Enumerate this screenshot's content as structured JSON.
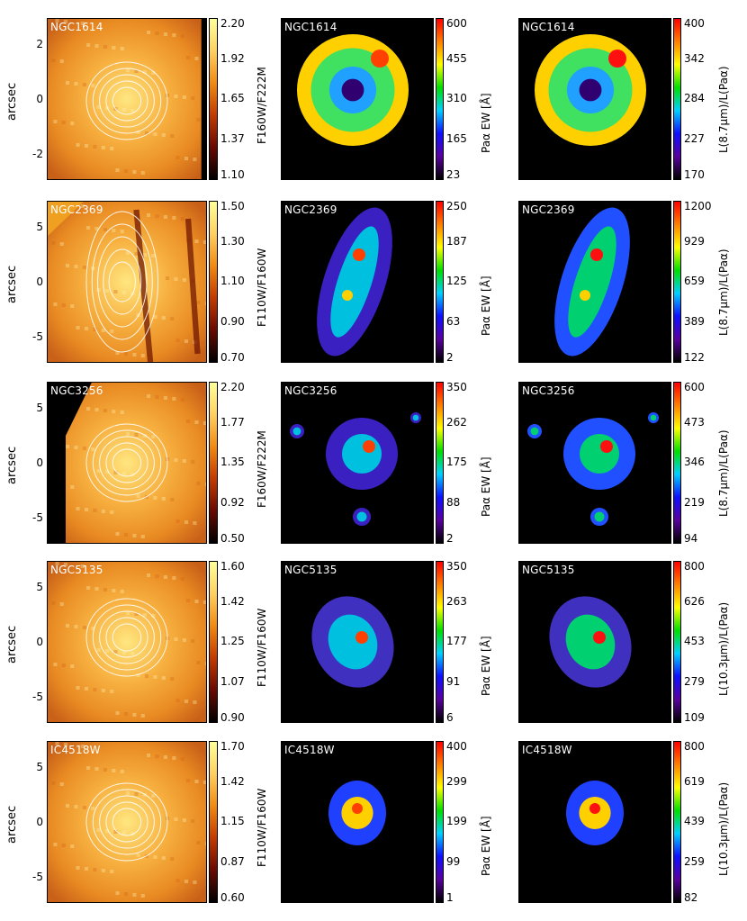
{
  "rows": [
    {
      "galaxy": "NGC1614",
      "y_label": "arcsec",
      "y_ticks": [
        "2",
        "0",
        "-2"
      ],
      "color_panel": {
        "label": "F160W/F222M",
        "ticks": [
          "2.20",
          "1.92",
          "1.65",
          "1.37",
          "1.10"
        ]
      },
      "ew_panel": {
        "label": "Paα EW [Å]",
        "ticks": [
          "600",
          "455",
          "310",
          "165",
          "23"
        ]
      },
      "ratio_panel": {
        "label": "L(8.7μm)/L(Paα)",
        "ticks": [
          "400",
          "342",
          "284",
          "227",
          "170"
        ]
      }
    },
    {
      "galaxy": "NGC2369",
      "y_label": "arcsec",
      "y_ticks": [
        "5",
        "0",
        "-5"
      ],
      "color_panel": {
        "label": "F110W/F160W",
        "ticks": [
          "1.50",
          "1.30",
          "1.10",
          "0.90",
          "0.70"
        ]
      },
      "ew_panel": {
        "label": "Paα EW [Å]",
        "ticks": [
          "250",
          "187",
          "125",
          "63",
          "2"
        ]
      },
      "ratio_panel": {
        "label": "L(8.7μm)/L(Paα)",
        "ticks": [
          "1200",
          "929",
          "659",
          "389",
          "122"
        ]
      }
    },
    {
      "galaxy": "NGC3256",
      "y_label": "arcsec",
      "y_ticks": [
        "5",
        "0",
        "-5"
      ],
      "color_panel": {
        "label": "F160W/F222M",
        "ticks": [
          "2.20",
          "1.77",
          "1.35",
          "0.92",
          "0.50"
        ]
      },
      "ew_panel": {
        "label": "Paα EW [Å]",
        "ticks": [
          "350",
          "262",
          "175",
          "88",
          "2"
        ]
      },
      "ratio_panel": {
        "label": "L(8.7μm)/L(Paα)",
        "ticks": [
          "600",
          "473",
          "346",
          "219",
          "94"
        ]
      }
    },
    {
      "galaxy": "NGC5135",
      "y_label": "arcsec",
      "y_ticks": [
        "5",
        "0",
        "-5"
      ],
      "color_panel": {
        "label": "F110W/F160W",
        "ticks": [
          "1.60",
          "1.42",
          "1.25",
          "1.07",
          "0.90"
        ]
      },
      "ew_panel": {
        "label": "Paα EW [Å]",
        "ticks": [
          "350",
          "263",
          "177",
          "91",
          "6"
        ]
      },
      "ratio_panel": {
        "label": "L(10.3μm)/L(Paα)",
        "ticks": [
          "800",
          "626",
          "453",
          "279",
          "109"
        ]
      }
    },
    {
      "galaxy": "IC4518W",
      "y_label": "arcsec",
      "y_ticks": [
        "5",
        "0",
        "-5"
      ],
      "color_panel": {
        "label": "F110W/F160W",
        "ticks": [
          "1.70",
          "1.42",
          "1.15",
          "0.87",
          "0.60"
        ]
      },
      "ew_panel": {
        "label": "Paα EW [Å]",
        "ticks": [
          "400",
          "299",
          "199",
          "99",
          "1"
        ]
      },
      "ratio_panel": {
        "label": "L(10.3μm)/L(Paα)",
        "ticks": [
          "800",
          "619",
          "439",
          "259",
          "82"
        ]
      }
    }
  ],
  "colors": {
    "heat_bar": [
      "#000000",
      "#6a0a00",
      "#c33a00",
      "#f08a10",
      "#ffd060",
      "#ffff9a"
    ],
    "rainbow_bar": [
      "#000000",
      "#5a00a0",
      "#1010ff",
      "#00d0ff",
      "#00e000",
      "#ffff00",
      "#ff8000",
      "#ff0000"
    ]
  }
}
